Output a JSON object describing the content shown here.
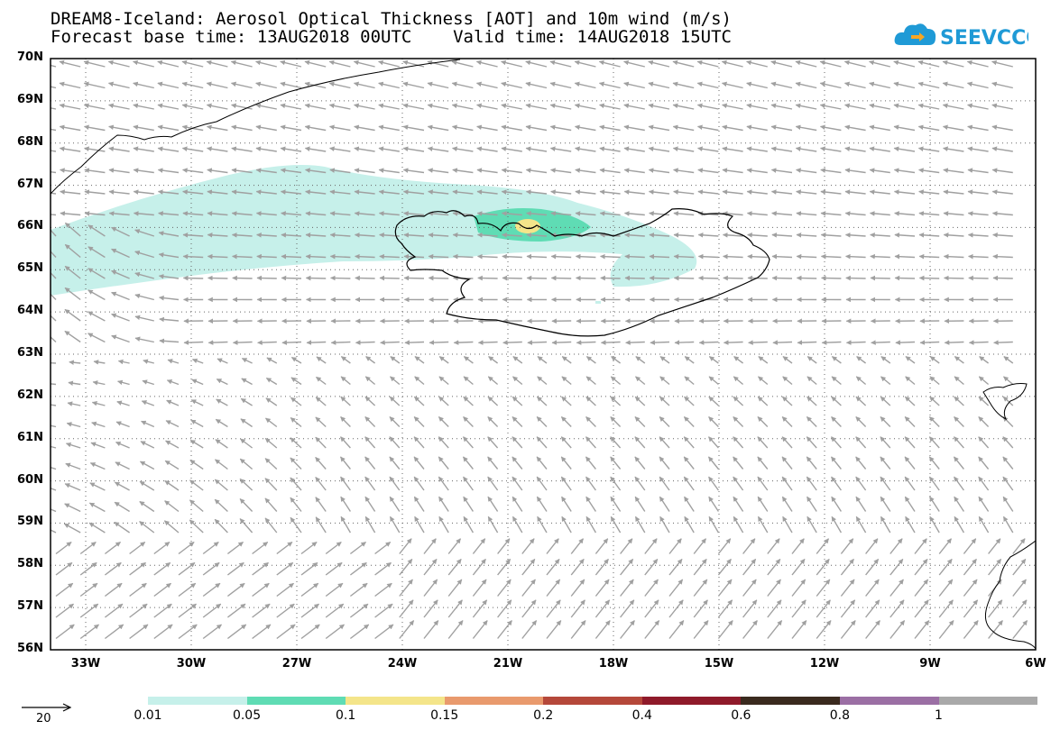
{
  "title": {
    "line1": "DREAM8-Iceland: Aerosol Optical Thickness [AOT] and 10m wind (m/s)",
    "line2": "Forecast base time: 13AUG2018 00UTC    Valid time: 14AUG2018 15UTC"
  },
  "logo": {
    "text": "SEEVCCC",
    "color": "#1f9ad6"
  },
  "map": {
    "lat_labels": [
      "70N",
      "69N",
      "68N",
      "67N",
      "66N",
      "65N",
      "64N",
      "63N",
      "62N",
      "61N",
      "60N",
      "59N",
      "58N",
      "57N",
      "56N"
    ],
    "lon_labels": [
      "33W",
      "30W",
      "27W",
      "24W",
      "21W",
      "18W",
      "15W",
      "12W",
      "9W",
      "6W"
    ],
    "lat_range": [
      56,
      70
    ],
    "lon_range": [
      -34,
      -6
    ],
    "grid": "dotted",
    "wind_arrow_color": "#a0a0a0",
    "coastline_color": "#000000"
  },
  "legend": {
    "labels": [
      "0.01",
      "0.05",
      "0.1",
      "0.15",
      "0.2",
      "0.4",
      "0.6",
      "0.8",
      "1"
    ],
    "colors": [
      "#c6f0ea",
      "#5fdcb4",
      "#f4e58a",
      "#e99a6d",
      "#b5483a",
      "#8f1a2a",
      "#3a2a1e",
      "#9b6fa4",
      "#a9a9a9"
    ]
  },
  "reference_vector": {
    "label": "20"
  }
}
